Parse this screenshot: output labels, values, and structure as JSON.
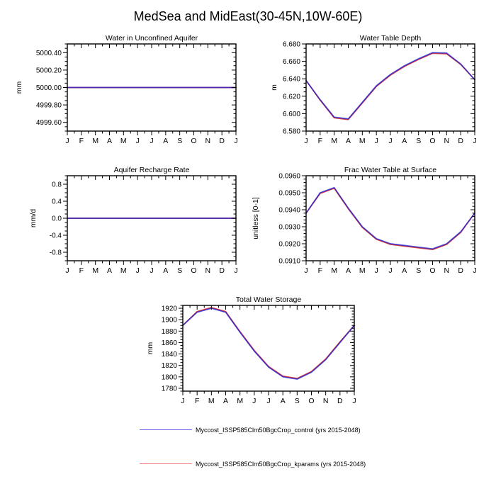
{
  "page_title": "MedSea and MidEast(30-45N,10W-60E)",
  "months": [
    "J",
    "F",
    "M",
    "A",
    "M",
    "J",
    "J",
    "A",
    "S",
    "O",
    "N",
    "D",
    "J"
  ],
  "colors": {
    "control_line": "#2222d0",
    "kparams_line": "#e03a3a",
    "axis": "#000000"
  },
  "legend": [
    {
      "label": "Myccost_ISSP585Clm50BgcCrop_control (yrs 2015-2048)",
      "color": "#6a6ae8"
    },
    {
      "label": "Myccost_ISSP585Clm50BgcCrop_kparams (yrs 2015-2048)",
      "color": "#f28080"
    }
  ],
  "chart_data": [
    {
      "type": "line",
      "title": "Water in Unconfined Aquifer",
      "ylabel": "mm",
      "categories": [
        "J",
        "F",
        "M",
        "A",
        "M",
        "J",
        "J",
        "A",
        "S",
        "O",
        "N",
        "D",
        "J"
      ],
      "ylim": [
        4999.5,
        5000.5
      ],
      "yticks": [
        4999.6,
        4999.8,
        5000.0,
        5000.2,
        5000.4
      ],
      "ytick_labels": [
        "4999.60",
        "4999.80",
        "5000.00",
        "5000.20",
        "5000.40"
      ],
      "y_minor_per_major": 3,
      "grid": false,
      "series": [
        {
          "name": "control",
          "color": "#2222d0",
          "values": [
            5000.0,
            5000.0,
            5000.0,
            5000.0,
            5000.0,
            5000.0,
            5000.0,
            5000.0,
            5000.0,
            5000.0,
            5000.0,
            5000.0,
            5000.0
          ]
        },
        {
          "name": "kparams",
          "color": "#e03a3a",
          "values": [
            5000.0,
            5000.0,
            5000.0,
            5000.0,
            5000.0,
            5000.0,
            5000.0,
            5000.0,
            5000.0,
            5000.0,
            5000.0,
            5000.0,
            5000.0
          ]
        }
      ]
    },
    {
      "type": "line",
      "title": "Water Table Depth",
      "ylabel": "m",
      "categories": [
        "J",
        "F",
        "M",
        "A",
        "M",
        "J",
        "J",
        "A",
        "S",
        "O",
        "N",
        "D",
        "J"
      ],
      "ylim": [
        6.58,
        6.68
      ],
      "yticks": [
        6.58,
        6.6,
        6.62,
        6.64,
        6.66,
        6.68
      ],
      "ytick_labels": [
        "6.580",
        "6.600",
        "6.620",
        "6.640",
        "6.660",
        "6.680"
      ],
      "y_minor_per_major": 3,
      "grid": false,
      "series": [
        {
          "name": "control",
          "color": "#2222d0",
          "values": [
            6.638,
            6.616,
            6.596,
            6.594,
            6.613,
            6.632,
            6.645,
            6.655,
            6.663,
            6.67,
            6.6695,
            6.657,
            6.639
          ]
        },
        {
          "name": "kparams",
          "color": "#e03a3a",
          "values": [
            6.638,
            6.6155,
            6.5952,
            6.5932,
            6.6122,
            6.6312,
            6.6442,
            6.6542,
            6.6622,
            6.6692,
            6.6687,
            6.6565,
            6.639
          ]
        }
      ]
    },
    {
      "type": "line",
      "title": "Aquifer Recharge Rate",
      "ylabel": "mm/d",
      "categories": [
        "J",
        "F",
        "M",
        "A",
        "M",
        "J",
        "J",
        "A",
        "S",
        "O",
        "N",
        "D",
        "J"
      ],
      "ylim": [
        -1.0,
        1.0
      ],
      "yticks": [
        -0.8,
        -0.4,
        0.0,
        0.4,
        0.8
      ],
      "ytick_labels": [
        "-0.8",
        "-0.4",
        "0.0",
        "0.4",
        "0.8"
      ],
      "y_minor_per_major": 3,
      "grid": false,
      "series": [
        {
          "name": "control",
          "color": "#2222d0",
          "values": [
            0.0,
            0.0,
            0.0,
            0.0,
            0.0,
            0.0,
            0.0,
            0.0,
            0.0,
            0.0,
            0.0,
            0.0,
            0.0
          ]
        },
        {
          "name": "kparams",
          "color": "#e03a3a",
          "values": [
            0.0,
            0.0,
            0.0,
            0.0,
            0.0,
            0.0,
            0.0,
            0.0,
            0.0,
            0.0,
            0.0,
            0.0,
            0.0
          ]
        }
      ]
    },
    {
      "type": "line",
      "title": "Frac Water Table at Surface",
      "ylabel": "unitless [0-1]",
      "categories": [
        "J",
        "F",
        "M",
        "A",
        "M",
        "J",
        "J",
        "A",
        "S",
        "O",
        "N",
        "D",
        "J"
      ],
      "ylim": [
        0.091,
        0.096
      ],
      "yticks": [
        0.091,
        0.092,
        0.093,
        0.094,
        0.095,
        0.096
      ],
      "ytick_labels": [
        "0.0910",
        "0.0920",
        "0.0930",
        "0.0940",
        "0.0950",
        "0.0960"
      ],
      "y_minor_per_major": 4,
      "grid": false,
      "series": [
        {
          "name": "control",
          "color": "#2222d0",
          "values": [
            0.0938,
            0.095,
            0.0953,
            0.0941,
            0.093,
            0.0923,
            0.092,
            0.0919,
            0.0918,
            0.0917,
            0.092,
            0.0927,
            0.0938
          ]
        },
        {
          "name": "kparams",
          "color": "#e03a3a",
          "values": [
            0.0938,
            0.09496,
            0.09526,
            0.09406,
            0.09296,
            0.09226,
            0.09196,
            0.09186,
            0.09176,
            0.09166,
            0.09196,
            0.09266,
            0.0938
          ]
        }
      ]
    },
    {
      "type": "line",
      "title": "Total Water Storage",
      "ylabel": "mm",
      "categories": [
        "J",
        "F",
        "M",
        "A",
        "M",
        "J",
        "J",
        "A",
        "S",
        "O",
        "N",
        "D",
        "J"
      ],
      "ylim": [
        1775,
        1925
      ],
      "yticks": [
        1780,
        1800,
        1820,
        1840,
        1860,
        1880,
        1900,
        1920
      ],
      "ytick_labels": [
        "1780",
        "1800",
        "1820",
        "1840",
        "1860",
        "1880",
        "1900",
        "1920"
      ],
      "y_minor_per_major": 3,
      "grid": false,
      "series": [
        {
          "name": "control",
          "color": "#2222d0",
          "values": [
            1890,
            1913,
            1920,
            1913,
            1878,
            1845,
            1817,
            1800,
            1796,
            1808,
            1830,
            1860,
            1890
          ]
        },
        {
          "name": "kparams",
          "color": "#e03a3a",
          "values": [
            1890,
            1914.2,
            1921.2,
            1914.2,
            1879.2,
            1846.2,
            1818.2,
            1801.2,
            1797.2,
            1809.2,
            1831.2,
            1861.2,
            1890
          ]
        }
      ]
    }
  ]
}
